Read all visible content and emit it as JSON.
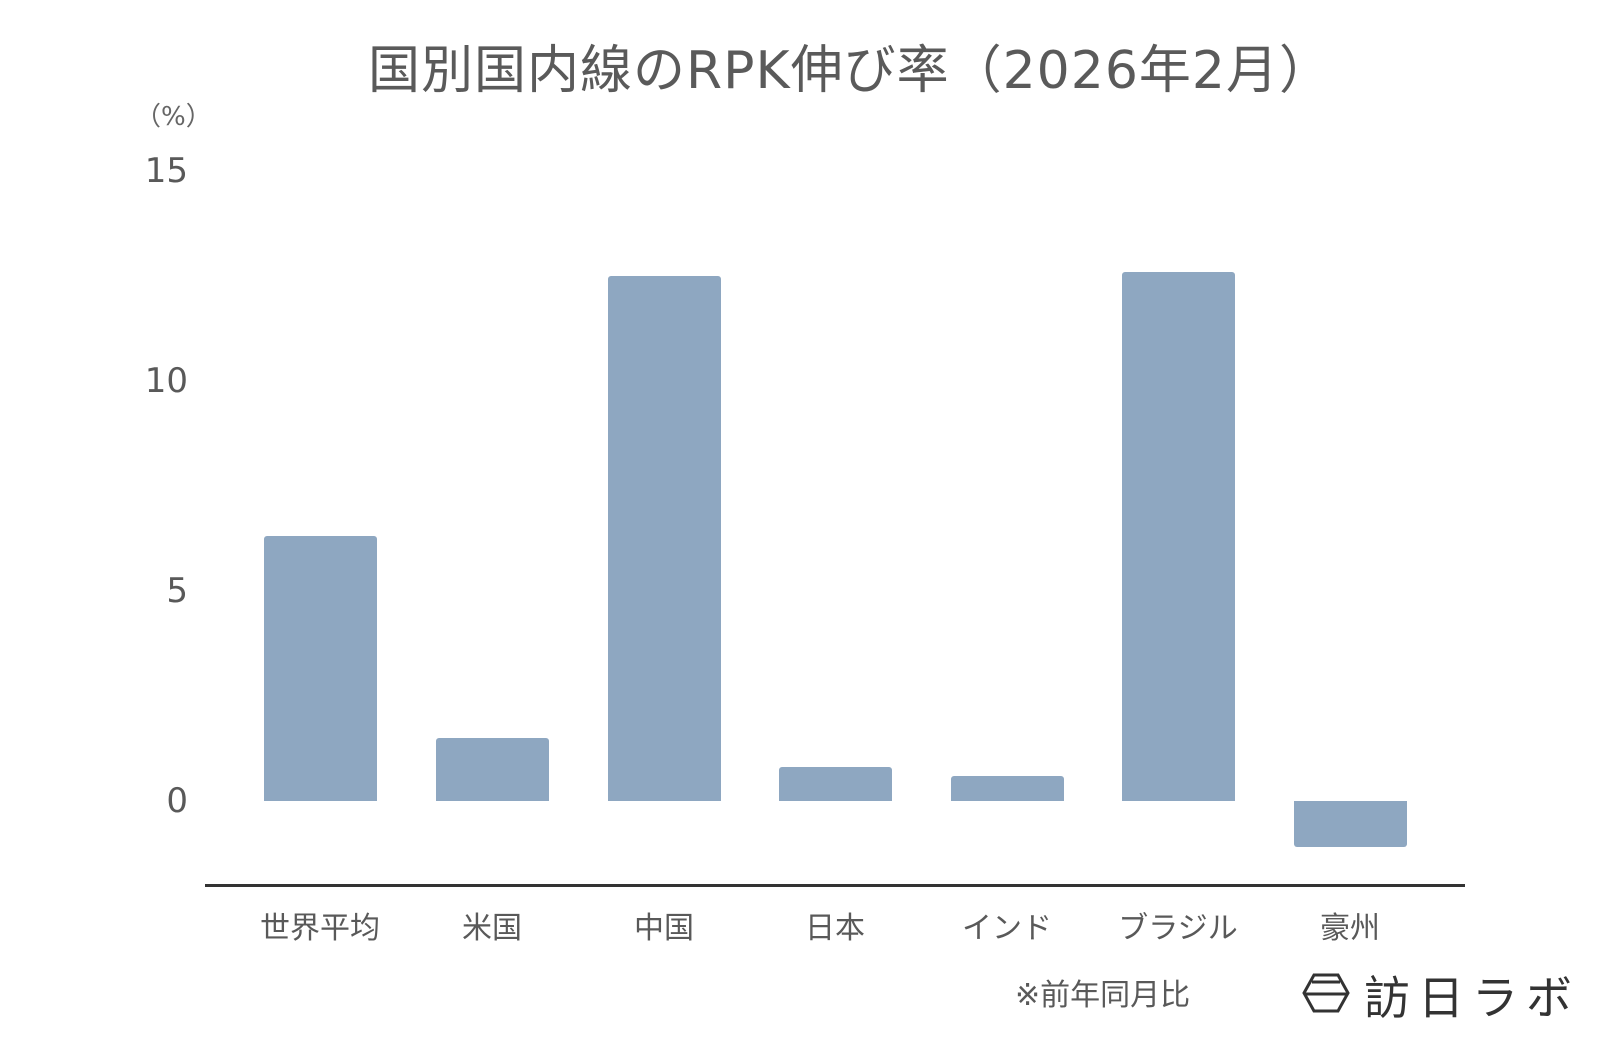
{
  "title": "国別国内線のRPK伸び率（2026年2月）",
  "y_axis": {
    "unit_label": "（%）",
    "ticks": [
      {
        "label": "15",
        "value": 15
      },
      {
        "label": "10",
        "value": 10
      },
      {
        "label": "5",
        "value": 5
      },
      {
        "label": "0",
        "value": 0
      }
    ]
  },
  "x_axis": {
    "labels": [
      "世界平均",
      "米国",
      "中国",
      "日本",
      "インド",
      "ブラジル",
      "豪州"
    ]
  },
  "footnote": "※前年同月比",
  "logo": {
    "icon": "hexagon-logo-icon",
    "text": "訪日ラボ"
  },
  "colors": {
    "bar": "#8ea7c1",
    "axis": "#333333",
    "text": "#595959"
  },
  "chart_data": {
    "type": "bar",
    "title": "国別国内線のRPK伸び率（2026年2月）",
    "xlabel": "",
    "ylabel": "（%）",
    "categories": [
      "世界平均",
      "米国",
      "中国",
      "日本",
      "インド",
      "ブラジル",
      "豪州"
    ],
    "values": [
      6.3,
      1.5,
      12.5,
      0.8,
      0.6,
      12.6,
      -1.1
    ],
    "ylim": [
      -2,
      15
    ],
    "yticks": [
      0,
      5,
      10,
      15
    ],
    "grid": false,
    "legend": "none",
    "annotations": [
      "※前年同月比"
    ]
  }
}
